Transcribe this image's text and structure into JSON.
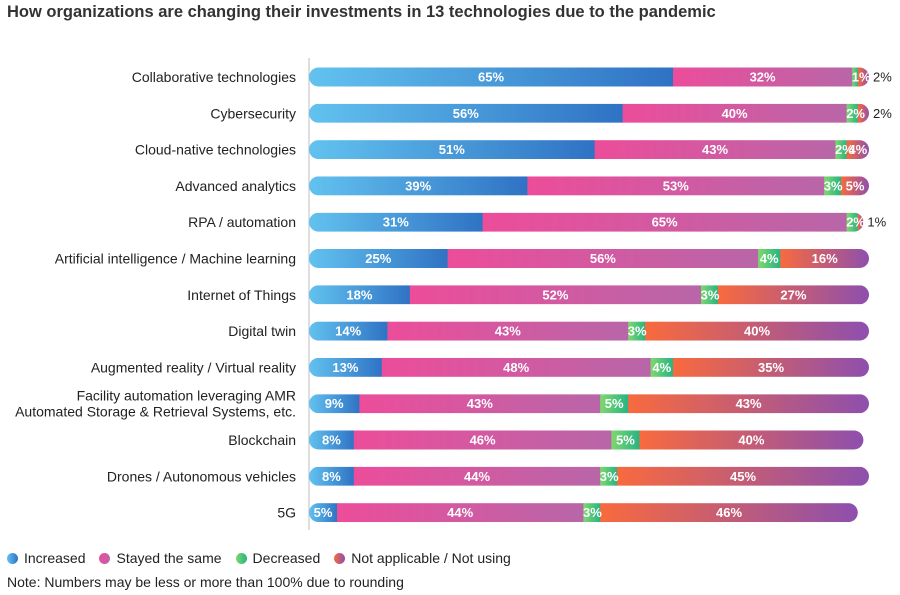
{
  "chart_data": {
    "type": "bar",
    "orientation": "horizontal",
    "stacked": true,
    "title": "How organizations are changing their investments in 13 technologies due to the pandemic",
    "categories": [
      "Collaborative technologies",
      "Cybersecurity",
      "Cloud-native technologies",
      "Advanced analytics",
      "RPA / automation",
      "Artificial intelligence / Machine learning",
      "Internet of Things",
      "Digital twin",
      "Augmented reality / Virtual reality",
      "Facility automation leveraging AMR\nAutomated Storage & Retrieval Systems, etc.",
      "Blockchain",
      "Drones / Autonomous vehicles",
      "5G"
    ],
    "series": [
      {
        "name": "Increased",
        "color": "#3a8fdc",
        "values": [
          65,
          56,
          51,
          39,
          31,
          25,
          18,
          14,
          13,
          9,
          8,
          8,
          5
        ]
      },
      {
        "name": "Stayed the same",
        "color": "#e0529a",
        "values": [
          32,
          40,
          43,
          53,
          65,
          56,
          52,
          43,
          48,
          43,
          46,
          44,
          44
        ]
      },
      {
        "name": "Decreased",
        "color": "#3cc47a",
        "values": [
          1,
          2,
          2,
          3,
          2,
          4,
          3,
          3,
          4,
          5,
          5,
          3,
          3
        ]
      },
      {
        "name": "Not applicable / Not using",
        "color": "#9b4fa0",
        "values": [
          2,
          2,
          4,
          5,
          1,
          16,
          27,
          40,
          35,
          43,
          40,
          45,
          46
        ]
      }
    ],
    "xlim": [
      0,
      100
    ],
    "grid": false,
    "legend_position": "bottom-left",
    "note": "Note: Numbers may be less or more than 100% due to rounding"
  }
}
